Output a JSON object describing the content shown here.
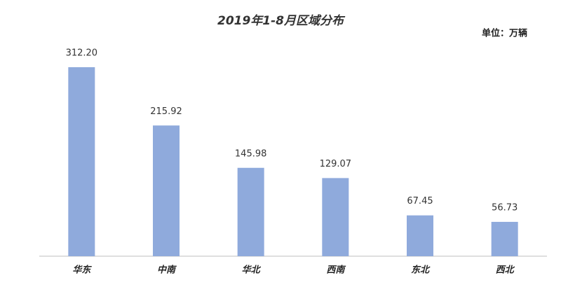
{
  "chart_data": {
    "type": "bar",
    "title": "2019年1-8月区域分布",
    "unit_label": "单位：万辆",
    "categories": [
      "华东",
      "中南",
      "华北",
      "西南",
      "东北",
      "西北"
    ],
    "values": [
      312.2,
      215.92,
      145.98,
      129.07,
      67.45,
      56.73
    ],
    "value_labels": [
      "312.20",
      "215.92",
      "145.98",
      "129.07",
      "67.45",
      "56.73"
    ],
    "color": "#8faadc"
  }
}
